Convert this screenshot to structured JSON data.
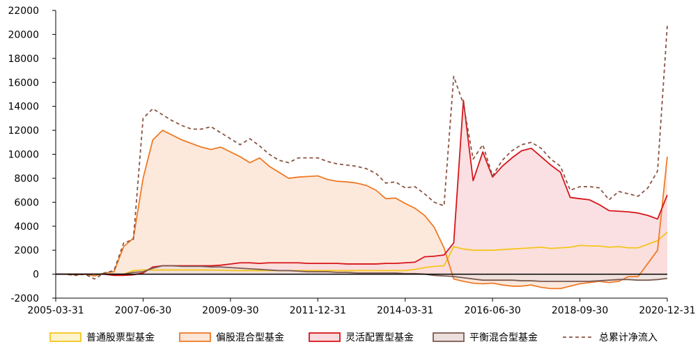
{
  "chart_data": {
    "type": "area",
    "grid": false,
    "legend_position": "bottom",
    "ylim": [
      -2000,
      22000
    ],
    "yticks": [
      -2000,
      0,
      2000,
      4000,
      6000,
      8000,
      10000,
      12000,
      14000,
      16000,
      18000,
      20000,
      22000
    ],
    "x_ticks": [
      "2005-03-31",
      "2007-06-30",
      "2009-09-30",
      "2011-12-31",
      "2014-03-31",
      "2016-06-30",
      "2018-09-30",
      "2020-12-31"
    ],
    "x": [
      "2005-03-31",
      "2005-06-30",
      "2005-09-30",
      "2005-12-31",
      "2006-03-31",
      "2006-06-30",
      "2006-09-30",
      "2006-12-31",
      "2007-03-31",
      "2007-06-30",
      "2007-09-30",
      "2007-12-31",
      "2008-03-31",
      "2008-06-30",
      "2008-09-30",
      "2008-12-31",
      "2009-03-31",
      "2009-06-30",
      "2009-09-30",
      "2009-12-31",
      "2010-03-31",
      "2010-06-30",
      "2010-09-30",
      "2010-12-31",
      "2011-03-31",
      "2011-06-30",
      "2011-09-30",
      "2011-12-31",
      "2012-03-31",
      "2012-06-30",
      "2012-09-30",
      "2012-12-31",
      "2013-03-31",
      "2013-06-30",
      "2013-09-30",
      "2013-12-31",
      "2014-03-31",
      "2014-06-30",
      "2014-09-30",
      "2014-12-31",
      "2015-03-31",
      "2015-06-30",
      "2015-09-30",
      "2015-12-31",
      "2016-03-31",
      "2016-06-30",
      "2016-09-30",
      "2016-12-31",
      "2017-03-31",
      "2017-06-30",
      "2017-09-30",
      "2017-12-31",
      "2018-03-31",
      "2018-06-30",
      "2018-09-30",
      "2018-12-31",
      "2019-03-31",
      "2019-06-30",
      "2019-09-30",
      "2019-12-31",
      "2020-03-31",
      "2020-06-30",
      "2020-09-30",
      "2020-12-31"
    ],
    "series": [
      {
        "name": "普通股票型基金",
        "color": "#f5c51c",
        "fill": "#fdf3cc",
        "values": [
          0,
          0,
          0,
          0,
          0,
          0,
          0,
          0,
          300,
          350,
          350,
          350,
          350,
          350,
          350,
          350,
          350,
          330,
          310,
          300,
          300,
          300,
          300,
          300,
          300,
          300,
          300,
          300,
          300,
          300,
          300,
          300,
          300,
          300,
          300,
          300,
          300,
          400,
          550,
          650,
          700,
          2300,
          2100,
          2000,
          2000,
          2000,
          2050,
          2100,
          2150,
          2200,
          2250,
          2150,
          2200,
          2250,
          2400,
          2350,
          2350,
          2250,
          2300,
          2200,
          2200,
          2500,
          2800,
          3500
        ]
      },
      {
        "name": "偏股混合型基金",
        "color": "#ef7a26",
        "fill": "#fbe5d6",
        "values": [
          0,
          0,
          -50,
          0,
          -150,
          100,
          200,
          2300,
          3000,
          8000,
          11200,
          12000,
          11600,
          11200,
          10900,
          10600,
          10400,
          10600,
          10200,
          9800,
          9300,
          9700,
          9000,
          8500,
          8000,
          8100,
          8150,
          8200,
          7900,
          7750,
          7700,
          7600,
          7400,
          7000,
          6300,
          6350,
          5900,
          5500,
          4900,
          3900,
          2200,
          -400,
          -600,
          -750,
          -800,
          -750,
          -900,
          -1000,
          -1000,
          -900,
          -1100,
          -1200,
          -1200,
          -1000,
          -800,
          -700,
          -600,
          -700,
          -600,
          -200,
          -200,
          900,
          2000,
          9800
        ]
      },
      {
        "name": "灵活配置型基金",
        "color": "#d7141a",
        "fill": "#f9dadd",
        "values": [
          0,
          0,
          0,
          0,
          0,
          0,
          -100,
          -100,
          -50,
          100,
          600,
          700,
          700,
          700,
          700,
          700,
          700,
          750,
          850,
          950,
          950,
          900,
          950,
          950,
          950,
          950,
          900,
          900,
          900,
          900,
          850,
          850,
          850,
          850,
          900,
          900,
          950,
          1000,
          1450,
          1500,
          1600,
          2600,
          14500,
          7800,
          10200,
          8100,
          9000,
          9700,
          10300,
          10500,
          9800,
          9100,
          8500,
          6400,
          6300,
          6200,
          5800,
          5300,
          5250,
          5200,
          5100,
          4900,
          4600,
          6600
        ]
      },
      {
        "name": "平衡混合型基金",
        "color": "#7a5a52",
        "fill": "#eddfdc",
        "values": [
          0,
          0,
          0,
          0,
          0,
          0,
          0,
          0,
          150,
          200,
          500,
          700,
          700,
          650,
          650,
          650,
          600,
          600,
          550,
          500,
          450,
          400,
          350,
          300,
          300,
          250,
          200,
          200,
          200,
          150,
          150,
          100,
          100,
          100,
          100,
          100,
          50,
          50,
          0,
          -100,
          -150,
          -200,
          -300,
          -400,
          -500,
          -500,
          -500,
          -500,
          -550,
          -550,
          -600,
          -600,
          -600,
          -600,
          -600,
          -600,
          -550,
          -500,
          -450,
          -450,
          -500,
          -500,
          -450,
          -350
        ]
      },
      {
        "name": "总累计净流入",
        "color": "#8b5444",
        "style": "dashed",
        "values": [
          0,
          0,
          -100,
          0,
          -400,
          100,
          300,
          2600,
          2900,
          13000,
          13800,
          13300,
          12800,
          12400,
          12100,
          12100,
          12300,
          11800,
          11300,
          10800,
          11300,
          10700,
          10000,
          9500,
          9300,
          9700,
          9700,
          9700,
          9400,
          9200,
          9100,
          9000,
          8800,
          8400,
          7600,
          7700,
          7200,
          7300,
          6700,
          6000,
          5700,
          16500,
          14200,
          9600,
          10800,
          8200,
          9500,
          10300,
          10800,
          11000,
          10500,
          9600,
          9000,
          7000,
          7300,
          7300,
          7200,
          6200,
          6900,
          6700,
          6500,
          7200,
          8600,
          20700
        ]
      }
    ]
  }
}
